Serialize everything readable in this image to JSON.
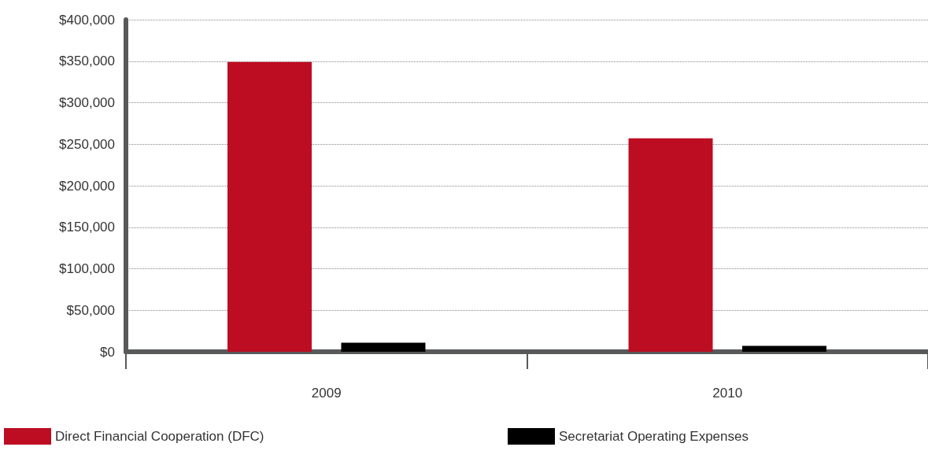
{
  "chart_data": {
    "type": "bar",
    "categories": [
      "2009",
      "2010"
    ],
    "series": [
      {
        "name": "Direct Financial Cooperation (DFC)",
        "color": "#bc0d22",
        "values": [
          349000,
          257000
        ]
      },
      {
        "name": "Secretariat Operating Expenses",
        "color": "#000000",
        "values": [
          11000,
          7000
        ]
      }
    ],
    "ylim": [
      0,
      400000
    ],
    "yticks": [
      {
        "value": 0,
        "label": "$0"
      },
      {
        "value": 50000,
        "label": "$50,000"
      },
      {
        "value": 100000,
        "label": "$100,000"
      },
      {
        "value": 150000,
        "label": "$150,000"
      },
      {
        "value": 200000,
        "label": "$200,000"
      },
      {
        "value": 250000,
        "label": "$250,000"
      },
      {
        "value": 300000,
        "label": "$300,000"
      },
      {
        "value": 350000,
        "label": "$350,000"
      },
      {
        "value": 400000,
        "label": "$400,000"
      }
    ],
    "grid": "y",
    "legend": "bottom"
  }
}
